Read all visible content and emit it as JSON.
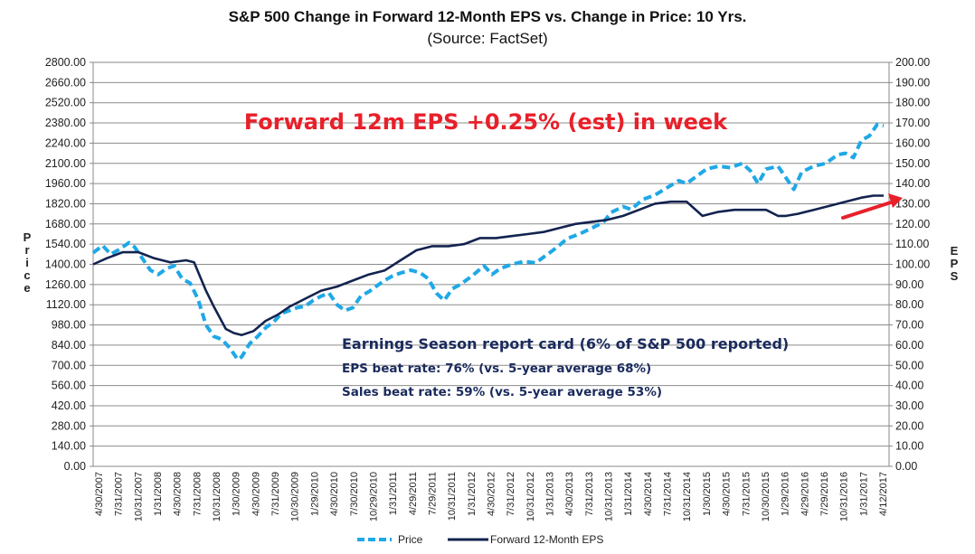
{
  "chart_data": {
    "type": "line",
    "title": "S&P 500 Change in Forward 12-Month EPS vs. Change in Price: 10 Yrs.",
    "subtitle": "(Source: FactSet)",
    "ylabel_left": "Price",
    "ylabel_right": "EPS",
    "ylim_left": [
      0,
      2800
    ],
    "ylim_right": [
      0,
      200
    ],
    "yticks_left": [
      "0.00",
      "140.00",
      "280.00",
      "420.00",
      "560.00",
      "700.00",
      "840.00",
      "980.00",
      "1120.00",
      "1260.00",
      "1400.00",
      "1540.00",
      "1680.00",
      "1820.00",
      "1960.00",
      "2100.00",
      "2240.00",
      "2380.00",
      "2520.00",
      "2660.00",
      "2800.00"
    ],
    "yticks_right": [
      "0.00",
      "10.00",
      "20.00",
      "30.00",
      "40.00",
      "50.00",
      "60.00",
      "70.00",
      "80.00",
      "90.00",
      "100.00",
      "110.00",
      "120.00",
      "130.00",
      "140.00",
      "150.00",
      "160.00",
      "170.00",
      "180.00",
      "190.00",
      "200.00"
    ],
    "xlim": [
      2007.33,
      2017.28
    ],
    "xticks": [
      "4/30/2007",
      "7/31/2007",
      "10/31/2007",
      "1/31/2008",
      "4/30/2008",
      "7/31/2008",
      "10/31/2008",
      "1/30/2009",
      "4/30/2009",
      "7/31/2009",
      "10/30/2009",
      "1/29/2010",
      "4/30/2010",
      "7/30/2010",
      "10/29/2010",
      "1/31/2011",
      "4/29/2011",
      "7/29/2011",
      "10/31/2011",
      "1/31/2012",
      "4/30/2012",
      "7/31/2012",
      "10/31/2012",
      "1/31/2013",
      "4/30/2013",
      "7/31/2013",
      "10/31/2013",
      "1/31/2014",
      "4/30/2014",
      "7/31/2014",
      "10/31/2014",
      "1/30/2015",
      "4/30/2015",
      "7/31/2015",
      "10/30/2015",
      "1/29/2016",
      "4/29/2016",
      "7/29/2016",
      "10/31/2016",
      "1/31/2017",
      "4/12/2017"
    ],
    "grid": true,
    "legend_position": "bottom",
    "series": [
      {
        "name": "Price",
        "axis": "left",
        "style": "dashed",
        "color": "#1fa8e6",
        "x": [
          2007.33,
          2007.45,
          2007.55,
          2007.65,
          2007.78,
          2007.85,
          2007.95,
          2008.05,
          2008.15,
          2008.25,
          2008.35,
          2008.45,
          2008.55,
          2008.65,
          2008.75,
          2008.85,
          2008.95,
          2009.05,
          2009.15,
          2009.2,
          2009.3,
          2009.4,
          2009.5,
          2009.6,
          2009.7,
          2009.8,
          2009.9,
          2010.0,
          2010.1,
          2010.2,
          2010.3,
          2010.4,
          2010.5,
          2010.6,
          2010.7,
          2010.8,
          2010.9,
          2011.0,
          2011.1,
          2011.2,
          2011.33,
          2011.45,
          2011.55,
          2011.65,
          2011.75,
          2011.85,
          2011.95,
          2012.1,
          2012.25,
          2012.35,
          2012.45,
          2012.6,
          2012.75,
          2012.9,
          2013.0,
          2013.15,
          2013.3,
          2013.45,
          2013.6,
          2013.75,
          2013.85,
          2014.0,
          2014.1,
          2014.25,
          2014.4,
          2014.55,
          2014.7,
          2014.8,
          2014.9,
          2015.05,
          2015.2,
          2015.35,
          2015.5,
          2015.6,
          2015.7,
          2015.8,
          2015.95,
          2016.05,
          2016.15,
          2016.25,
          2016.4,
          2016.55,
          2016.7,
          2016.8,
          2016.9,
          2017.0,
          2017.1,
          2017.2,
          2017.28
        ],
        "values": [
          1480,
          1530,
          1470,
          1500,
          1550,
          1520,
          1440,
          1360,
          1330,
          1370,
          1390,
          1300,
          1270,
          1160,
          980,
          900,
          880,
          820,
          740,
          760,
          850,
          900,
          960,
          1000,
          1060,
          1080,
          1100,
          1110,
          1150,
          1180,
          1200,
          1120,
          1080,
          1100,
          1180,
          1210,
          1250,
          1290,
          1320,
          1340,
          1360,
          1340,
          1300,
          1200,
          1150,
          1230,
          1260,
          1320,
          1390,
          1330,
          1370,
          1400,
          1420,
          1410,
          1450,
          1510,
          1580,
          1610,
          1650,
          1690,
          1760,
          1800,
          1780,
          1850,
          1880,
          1930,
          1980,
          1960,
          2000,
          2060,
          2080,
          2070,
          2100,
          2050,
          1960,
          2060,
          2080,
          2000,
          1920,
          2040,
          2080,
          2100,
          2160,
          2170,
          2140,
          2260,
          2290,
          2370,
          2360
        ]
      },
      {
        "name": "Forward 12-Month EPS",
        "axis": "right",
        "style": "solid",
        "color": "#13234f",
        "x": [
          2007.33,
          2007.5,
          2007.7,
          2007.9,
          2008.1,
          2008.3,
          2008.5,
          2008.6,
          2008.75,
          2008.85,
          2009.0,
          2009.1,
          2009.2,
          2009.35,
          2009.5,
          2009.65,
          2009.8,
          2010.0,
          2010.2,
          2010.4,
          2010.6,
          2010.8,
          2011.0,
          2011.2,
          2011.4,
          2011.6,
          2011.8,
          2012.0,
          2012.2,
          2012.4,
          2012.6,
          2012.8,
          2013.0,
          2013.2,
          2013.4,
          2013.6,
          2013.8,
          2014.0,
          2014.2,
          2014.4,
          2014.6,
          2014.8,
          2015.0,
          2015.1,
          2015.2,
          2015.4,
          2015.6,
          2015.8,
          2015.95,
          2016.05,
          2016.2,
          2016.4,
          2016.6,
          2016.8,
          2017.0,
          2017.15,
          2017.28
        ],
        "values": [
          100,
          103,
          106,
          106,
          103,
          101,
          102,
          101,
          87,
          79,
          68,
          66,
          65,
          67,
          72,
          75,
          79,
          83,
          87,
          89,
          92,
          95,
          97,
          102,
          107,
          109,
          109,
          110,
          113,
          113,
          114,
          115,
          116,
          118,
          120,
          121,
          122,
          124,
          127,
          130,
          131,
          131,
          124,
          125,
          126,
          127,
          127,
          127,
          124,
          124,
          125,
          127,
          129,
          131,
          133,
          134,
          134
        ]
      }
    ],
    "annotations": {
      "headline": "Forward 12m EPS +0.25% (est) in week",
      "headline_color": "#e8202a",
      "report_card_title": "Earnings Season report card (6% of S&P 500 reported)",
      "eps_beat": "EPS beat rate: 76% (vs. 5-year average 68%)",
      "sales_beat": "Sales beat rate: 59% (vs. 5-year average 53%)",
      "text_color": "#1a2a5c",
      "arrow_color": "#e8202a"
    }
  }
}
